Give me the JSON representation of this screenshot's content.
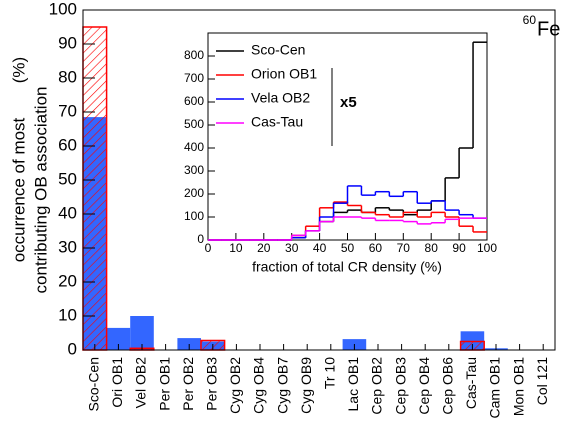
{
  "chart_data": [
    {
      "type": "bar",
      "ylabel": [
        "occurrence of most",
        "contributing OB association"
      ],
      "yunit": "(%)",
      "annotation": {
        "mass": "60",
        "element": "Fe"
      },
      "categories": [
        "Sco-Cen",
        "Ori OB1",
        "Vel OB2",
        "Per OB1",
        "Per OB2",
        "Per OB3",
        "Cyg OB2",
        "Cyg OB4",
        "Cyg OB7",
        "Cyg OB9",
        "Tr 10",
        "Lac OB1",
        "Cep OB2",
        "Cep OB3",
        "Cep OB4",
        "Cep OB6",
        "Cas-Tau",
        "Cam OB1",
        "Mon OB1",
        "Col 121"
      ],
      "series": [
        {
          "color": "#3366ff",
          "values": [
            68.5,
            6.5,
            10,
            0,
            3.5,
            2.5,
            0,
            0,
            0,
            0,
            0,
            3.2,
            0,
            0,
            0,
            0,
            5.5,
            0.5,
            0,
            0
          ]
        },
        {
          "color": "#ff0000",
          "pattern": "hatch",
          "values": [
            95,
            0,
            0.5,
            0,
            0,
            2.8,
            0,
            0,
            0,
            0,
            0,
            0,
            0,
            0,
            0,
            0,
            2.5,
            0,
            0,
            0
          ]
        }
      ],
      "ylim": [
        0,
        100
      ],
      "yticks": [
        0,
        10,
        20,
        30,
        40,
        50,
        60,
        70,
        80,
        90,
        100
      ]
    },
    {
      "type": "histogram",
      "xlabel": "fraction of total CR density (%)",
      "bins": [
        0,
        5,
        10,
        15,
        20,
        25,
        30,
        35,
        40,
        45,
        50,
        55,
        60,
        65,
        70,
        75,
        80,
        85,
        90,
        95,
        100
      ],
      "series": [
        {
          "name": "Sco-Cen",
          "color": "#000000",
          "values": [
            0,
            0,
            0,
            0,
            0,
            0,
            10,
            40,
            80,
            120,
            130,
            120,
            140,
            130,
            110,
            130,
            170,
            270,
            400,
            860
          ]
        },
        {
          "name": "Orion OB1",
          "color": "#ff0000",
          "values": [
            0,
            0,
            0,
            0,
            0,
            0,
            20,
            60,
            140,
            165,
            150,
            120,
            110,
            100,
            120,
            100,
            120,
            100,
            60,
            35
          ]
        },
        {
          "name": "Vela OB2",
          "color": "#0000ff",
          "values": [
            0,
            0,
            0,
            0,
            0,
            0,
            10,
            40,
            100,
            160,
            235,
            195,
            210,
            190,
            210,
            160,
            170,
            130,
            110,
            95
          ]
        },
        {
          "name": "Cas-Tau",
          "color": "#ff00ff",
          "values": [
            0,
            0,
            0,
            0,
            0,
            0,
            20,
            40,
            80,
            100,
            100,
            95,
            85,
            85,
            80,
            70,
            75,
            90,
            95,
            95
          ]
        }
      ],
      "scale_note": "x5",
      "xlim": [
        0,
        100
      ],
      "xticks": [
        0,
        10,
        20,
        30,
        40,
        50,
        60,
        70,
        80,
        90,
        100
      ],
      "ylim": [
        0,
        900
      ],
      "yticks": [
        0,
        100,
        200,
        300,
        400,
        500,
        600,
        700,
        800
      ]
    }
  ]
}
